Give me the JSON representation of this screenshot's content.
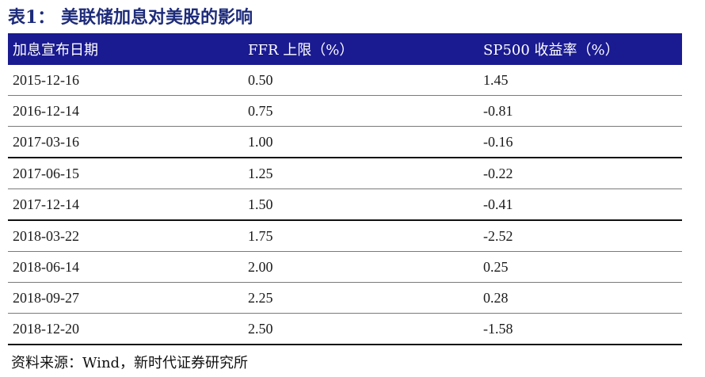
{
  "title": "表1： 美联储加息对美股的影响",
  "table": {
    "headers": [
      "加息宣布日期",
      "FFR 上限（%）",
      "SP500 收益率（%）"
    ],
    "rows": [
      [
        "2015-12-16",
        "0.50",
        "1.45"
      ],
      [
        "2016-12-14",
        "0.75",
        "-0.81"
      ],
      [
        "2017-03-16",
        "1.00",
        "-0.16"
      ],
      [
        "2017-06-15",
        "1.25",
        "-0.22"
      ],
      [
        "2017-12-14",
        "1.50",
        "-0.41"
      ],
      [
        "2018-03-22",
        "1.75",
        "-2.52"
      ],
      [
        "2018-06-14",
        "2.00",
        "0.25"
      ],
      [
        "2018-09-27",
        "2.25",
        "0.28"
      ],
      [
        "2018-12-20",
        "2.50",
        "-1.58"
      ]
    ]
  },
  "source": "资料来源：Wind，新时代证券研究所",
  "colors": {
    "title": "#1d2b7a",
    "header_bg": "#1a1a91",
    "header_text": "#ffffff"
  }
}
